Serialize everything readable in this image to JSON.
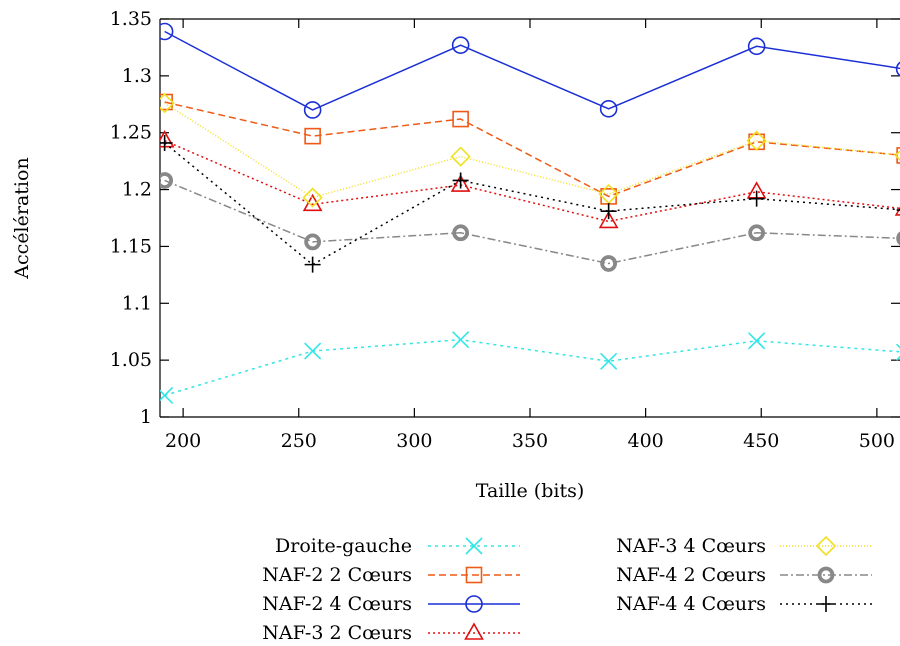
{
  "chart_data": {
    "type": "line",
    "xlabel": "Taille (bits)",
    "ylabel": "Accélération",
    "xlim": [
      190,
      510
    ],
    "ylim": [
      1,
      1.35
    ],
    "x_ticks": [
      200,
      250,
      300,
      350,
      400,
      450,
      500
    ],
    "x_tick_labels": [
      "200",
      "250",
      "300",
      "350",
      "400",
      "450",
      "500"
    ],
    "y_ticks": [
      1,
      1.05,
      1.1,
      1.15,
      1.2,
      1.25,
      1.3,
      1.35
    ],
    "y_tick_labels": [
      "1",
      "1.05",
      "1.1",
      "1.15",
      "1.2",
      "1.25",
      "1.3",
      "1.35"
    ],
    "grid": false,
    "legend_position": "bottom",
    "x": [
      192,
      256,
      320,
      384,
      448,
      512
    ],
    "series": [
      {
        "name": "Droite-gauche",
        "color": "#33e6e6",
        "dash": "3,4",
        "marker": "x",
        "values": [
          1.019,
          1.058,
          1.068,
          1.049,
          1.067,
          1.057
        ]
      },
      {
        "name": "NAF-2 2 Cœurs",
        "color": "#ee5a17",
        "dash": "7,4",
        "marker": "square",
        "values": [
          1.277,
          1.247,
          1.262,
          1.194,
          1.242,
          1.23
        ]
      },
      {
        "name": "NAF-2 4 Cœurs",
        "color": "#1a2fd6",
        "dash": "",
        "marker": "circle",
        "values": [
          1.339,
          1.27,
          1.327,
          1.271,
          1.326,
          1.306
        ]
      },
      {
        "name": "NAF-3 2 Cœurs",
        "color": "#e01010",
        "dash": "2,3",
        "marker": "triangle",
        "values": [
          1.243,
          1.187,
          1.204,
          1.172,
          1.198,
          1.183
        ]
      },
      {
        "name": "NAF-3 4 Cœurs",
        "color": "#f2e020",
        "dash": "1,2",
        "marker": "diamond",
        "values": [
          1.276,
          1.193,
          1.229,
          1.196,
          1.243,
          1.23
        ]
      },
      {
        "name": "NAF-4 2 Cœurs",
        "color": "#888888",
        "dash": "8,3,2,3",
        "marker": "ring",
        "values": [
          1.208,
          1.154,
          1.162,
          1.135,
          1.162,
          1.157
        ]
      },
      {
        "name": "NAF-4 4 Cœurs",
        "color": "#000000",
        "dash": "2,4",
        "marker": "plus",
        "values": [
          1.241,
          1.134,
          1.208,
          1.181,
          1.192,
          1.182
        ]
      }
    ]
  }
}
